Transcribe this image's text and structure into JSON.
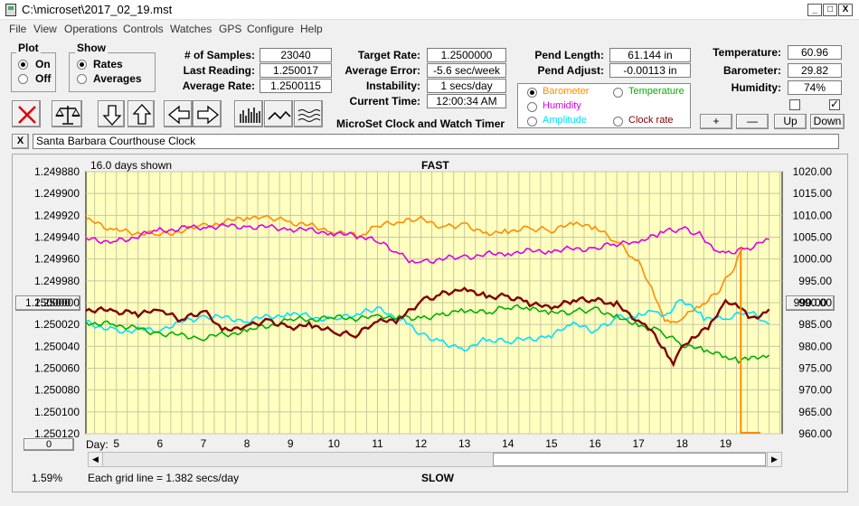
{
  "window": {
    "title": "C:\\microset\\2017_02_19.mst",
    "min": "_",
    "max": "□",
    "close": "X"
  },
  "menu": [
    "File",
    "View",
    "Operations",
    "Controls",
    "Watches",
    "GPS",
    "Configure",
    "Help"
  ],
  "plot_group": {
    "title": "Plot",
    "on": "On",
    "off": "Off",
    "selected": "on"
  },
  "show_group": {
    "title": "Show",
    "rates": "Rates",
    "averages": "Averages",
    "selected": "rates"
  },
  "stats": {
    "samples_label": "# of Samples:",
    "samples": "23040",
    "last_label": "Last Reading:",
    "last": "1.250017",
    "avg_label": "Average Rate:",
    "avg": "1.2500115"
  },
  "rates": {
    "target_label": "Target Rate:",
    "target": "1.2500000",
    "error_label": "Average Error:",
    "error": "-5.6 sec/week",
    "instab_label": "Instability:",
    "instab": "1 secs/day",
    "time_label": "Current Time:",
    "time": "12:00:34 AM"
  },
  "pend": {
    "length_label": "Pend Length:",
    "length": "61.144 in",
    "adjust_label": "Pend Adjust:",
    "adjust": "-0.00113 in"
  },
  "env": {
    "temp_label": "Temperature:",
    "temp": "60.96",
    "baro_label": "Barometer:",
    "baro": "29.82",
    "hum_label": "Humidity:",
    "hum": "74%"
  },
  "app_name": "MicroSet Clock and Watch Timer",
  "series_select": {
    "barometer": "Barometer",
    "temperature": "Temperature",
    "humidity": "Humidity",
    "amplitude": "Amplitude",
    "clock_rate": "Clock rate",
    "selected": "barometer"
  },
  "adjust_buttons": {
    "plus": "+",
    "minus": "—",
    "up": "Up",
    "down": "Down"
  },
  "clock_name": "Santa Barbara Courthouse Clock",
  "close_x": "X",
  "colors": {
    "barometer": "#ff8c00",
    "temperature": "#00b000",
    "humidity": "#e000e0",
    "amplitude": "#00e0ff",
    "clock_rate": "#800000",
    "plot_bg": "#ffffc0",
    "grid": "#c8c8a0"
  },
  "chart_data": {
    "type": "line",
    "top_label": "FAST",
    "bottom_label": "SLOW",
    "days_shown": "16.0 days shown",
    "grid_note": "Each grid line = 1.382 secs/day",
    "percent": "1.59%",
    "day_label": "Day:",
    "x_ticks": [
      5,
      6,
      7,
      8,
      9,
      10,
      11,
      12,
      13,
      14,
      15,
      16,
      17,
      18,
      19
    ],
    "xlim": [
      4.3,
      20.3
    ],
    "left_ticks": [
      "1.249880",
      "1.249900",
      "1.249920",
      "1.249940",
      "1.249960",
      "1.249980",
      "1.250000",
      "1.250020",
      "1.250040",
      "1.250060",
      "1.250080",
      "1.250100",
      "1.250120"
    ],
    "left_button": "1.250000",
    "left_bottom_button": "0",
    "ylim_left": [
      1.24988,
      1.25012
    ],
    "right_ticks": [
      "1020.00",
      "1015.00",
      "1010.00",
      "1005.00",
      "1000.00",
      "995.00",
      "990.00",
      "985.00",
      "980.00",
      "975.00",
      "970.00",
      "965.00",
      "960.00"
    ],
    "right_button": "990.00",
    "ylim_right": [
      960,
      1020
    ],
    "series": [
      {
        "key": "barometer",
        "x": [
          4.3,
          5,
          6,
          7,
          8,
          8.4,
          9,
          10,
          10.6,
          11,
          11.6,
          12,
          12.5,
          13,
          13.5,
          14,
          14.5,
          15,
          15.5,
          16,
          16.5,
          17,
          17.3,
          17.6,
          17.8,
          18,
          18.4,
          18.8,
          19.2,
          19.4
        ],
        "y": [
          1009.0,
          1006.5,
          1005.5,
          1007.5,
          1009.5,
          1010.0,
          1008.5,
          1006.5,
          1005.0,
          1007.5,
          1008.5,
          1009.0,
          1007.5,
          1008.0,
          1006.0,
          1006.5,
          1007.0,
          1006.5,
          1008.0,
          1007.0,
          1004.0,
          999.0,
          993.5,
          986.0,
          985.5,
          987.0,
          989.0,
          992.0,
          998.0,
          1002.5
        ]
      },
      {
        "key": "humidity",
        "x": [
          4.3,
          5,
          6,
          7,
          8,
          9,
          10,
          10.6,
          11,
          11.5,
          11.8,
          12,
          13,
          14,
          15,
          16,
          16.5,
          17,
          17.5,
          18,
          18.4,
          18.8,
          19,
          19.5,
          20
        ],
        "y": [
          1004.5,
          1004.0,
          1006.5,
          1007.5,
          1007.5,
          1007.0,
          1006.0,
          1005.0,
          1004.0,
          1001.0,
          999.0,
          999.5,
          1000.5,
          1001.5,
          1002.0,
          1002.5,
          1003.5,
          1003.5,
          1006.0,
          1007.0,
          1005.5,
          1002.0,
          1001.5,
          1002.5,
          1004.5
        ]
      },
      {
        "key": "amplitude",
        "x": [
          4.3,
          5,
          6,
          7,
          8,
          9,
          10,
          10.6,
          11,
          11.6,
          12,
          12.5,
          13,
          13.5,
          14,
          15,
          15.5,
          16,
          16.5,
          17,
          17.3,
          17.6,
          18,
          18.5,
          19,
          19.5,
          20
        ],
        "y": [
          985.5,
          983.5,
          984.0,
          987.0,
          986.0,
          987.5,
          986.0,
          987.5,
          988.5,
          986.0,
          983.0,
          981.0,
          979.5,
          981.5,
          981.0,
          982.5,
          985.0,
          983.5,
          986.5,
          987.0,
          988.5,
          987.0,
          991.0,
          986.5,
          986.0,
          988.0,
          985.0
        ]
      },
      {
        "key": "temperature",
        "x": [
          4.3,
          5,
          6,
          7,
          8,
          9,
          10,
          11,
          11.5,
          12,
          12.5,
          13,
          13.5,
          14,
          14.5,
          15,
          15.5,
          16,
          16.5,
          17,
          17.5,
          18,
          18.5,
          19,
          19.3,
          19.6,
          20
        ],
        "y": [
          985.5,
          985.0,
          983.0,
          982.0,
          983.5,
          986.0,
          986.5,
          986.5,
          987.0,
          986.5,
          987.5,
          988.5,
          987.5,
          989.0,
          988.5,
          987.5,
          988.0,
          988.5,
          987.0,
          985.0,
          983.5,
          980.5,
          979.0,
          977.5,
          976.5,
          977.0,
          978.0
        ]
      },
      {
        "key": "clock_rate",
        "x": [
          4.3,
          5,
          5.5,
          6,
          6.5,
          7,
          7.5,
          8,
          8.5,
          9,
          9.5,
          10,
          10.5,
          11,
          11.5,
          12,
          12.5,
          13,
          13.5,
          14,
          14.5,
          15,
          15.5,
          16,
          16.5,
          17,
          17.3,
          17.6,
          17.8,
          18,
          18.3,
          18.6,
          19,
          19.3,
          19.6,
          20
        ],
        "y": [
          988.5,
          988.0,
          987.5,
          988.0,
          986.0,
          988.0,
          983.5,
          985.0,
          986.0,
          984.5,
          985.0,
          983.0,
          982.5,
          985.5,
          986.0,
          990.5,
          992.0,
          993.5,
          991.5,
          991.5,
          990.0,
          988.5,
          990.5,
          990.5,
          989.5,
          986.0,
          983.5,
          979.5,
          976.5,
          980.0,
          982.5,
          984.0,
          990.0,
          989.0,
          986.0,
          988.5
        ]
      }
    ],
    "marker": {
      "x": 19.35,
      "y": [
        1002.5,
        960
      ]
    }
  }
}
